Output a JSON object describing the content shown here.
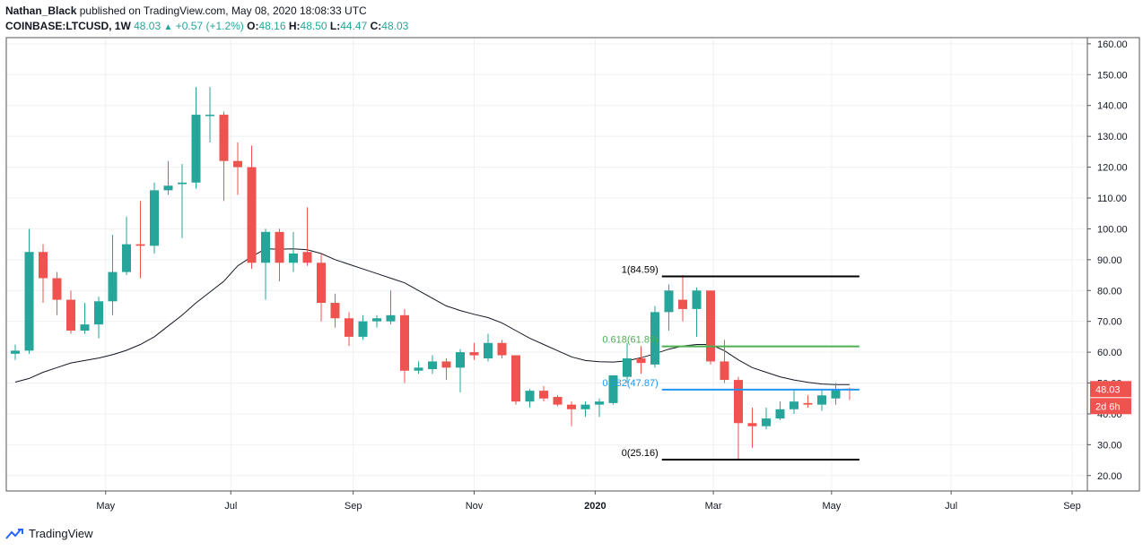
{
  "header": {
    "author": "Nathan_Black",
    "published_text": "published on TradingView.com, May 08, 2020 18:08:33 UTC",
    "symbol": "COINBASE:LTCUSD, 1W",
    "last": "48.03",
    "change": "+0.57 (+1.2%)",
    "o_label": "O:",
    "o_value": "48.16",
    "h_label": "H:",
    "h_value": "48.50",
    "l_label": "L:",
    "l_value": "44.47",
    "c_label": "C:",
    "c_value": "48.03"
  },
  "footer": {
    "brand": "TradingView"
  },
  "colors": {
    "up": "#26a69a",
    "down": "#ef5350",
    "ma": "#131722",
    "fib_1": "#000000",
    "fib_0618": "#4caf50",
    "fib_0382": "#2196f3",
    "fib_0": "#000000",
    "price_badge": "#ef5350",
    "grid": "#eef0f3"
  },
  "chart_data": {
    "type": "candlestick",
    "symbol": "COINBASE:LTCUSD",
    "interval": "1W",
    "ylim": [
      15,
      162
    ],
    "grid": true,
    "y_ticks": [
      "20.00",
      "30.00",
      "40.00",
      "50.00",
      "60.00",
      "70.00",
      "80.00",
      "90.00",
      "100.00",
      "110.00",
      "120.00",
      "130.00",
      "140.00",
      "150.00",
      "160.00"
    ],
    "x_ticks": [
      {
        "label": "May",
        "index": 6.5
      },
      {
        "label": "Jul",
        "index": 15.5
      },
      {
        "label": "Sep",
        "index": 24.3
      },
      {
        "label": "Nov",
        "index": 33.0
      },
      {
        "label": "2020",
        "index": 41.7
      },
      {
        "label": "Mar",
        "index": 50.2
      },
      {
        "label": "May",
        "index": 58.7
      },
      {
        "label": "Jul",
        "index": 67.3
      },
      {
        "label": "Sep",
        "index": 76.0
      }
    ],
    "candles": [
      {
        "o": 59.5,
        "h": 62.5,
        "l": 57.5,
        "c": 60.5
      },
      {
        "o": 60.5,
        "h": 100.0,
        "l": 59.5,
        "c": 92.5
      },
      {
        "o": 92.5,
        "h": 95.0,
        "l": 76.0,
        "c": 84.0
      },
      {
        "o": 84.0,
        "h": 86.0,
        "l": 72.0,
        "c": 77.0
      },
      {
        "o": 77.0,
        "h": 80.0,
        "l": 66.0,
        "c": 67.0
      },
      {
        "o": 67.0,
        "h": 76.0,
        "l": 66.0,
        "c": 69.0
      },
      {
        "o": 69.0,
        "h": 78.0,
        "l": 64.5,
        "c": 76.5
      },
      {
        "o": 76.5,
        "h": 98.0,
        "l": 72.0,
        "c": 86.0
      },
      {
        "o": 86.0,
        "h": 104.0,
        "l": 85.0,
        "c": 95.0
      },
      {
        "o": 95.0,
        "h": 109.0,
        "l": 84.0,
        "c": 94.5
      },
      {
        "o": 94.5,
        "h": 115.0,
        "l": 92.0,
        "c": 112.5
      },
      {
        "o": 112.5,
        "h": 122.0,
        "l": 111.0,
        "c": 114.0
      },
      {
        "o": 114.5,
        "h": 121.0,
        "l": 97.0,
        "c": 115.0
      },
      {
        "o": 115.0,
        "h": 146.0,
        "l": 113.0,
        "c": 137.0
      },
      {
        "o": 137.0,
        "h": 146.0,
        "l": 128.0,
        "c": 137.0
      },
      {
        "o": 137.0,
        "h": 138.0,
        "l": 109.0,
        "c": 122.0
      },
      {
        "o": 122.0,
        "h": 128.0,
        "l": 111.0,
        "c": 120.0
      },
      {
        "o": 120.0,
        "h": 127.0,
        "l": 87.0,
        "c": 89.0
      },
      {
        "o": 89.0,
        "h": 100.0,
        "l": 77.0,
        "c": 99.0
      },
      {
        "o": 99.0,
        "h": 100.0,
        "l": 83.0,
        "c": 89.0
      },
      {
        "o": 89.0,
        "h": 99.0,
        "l": 86.0,
        "c": 92.0
      },
      {
        "o": 92.5,
        "h": 107.0,
        "l": 88.0,
        "c": 89.0
      },
      {
        "o": 89.0,
        "h": 92.0,
        "l": 70.0,
        "c": 76.0
      },
      {
        "o": 76.0,
        "h": 79.0,
        "l": 68.0,
        "c": 71.0
      },
      {
        "o": 71.0,
        "h": 73.0,
        "l": 62.0,
        "c": 65.0
      },
      {
        "o": 65.0,
        "h": 72.0,
        "l": 64.0,
        "c": 70.0
      },
      {
        "o": 70.0,
        "h": 72.0,
        "l": 68.0,
        "c": 71.0
      },
      {
        "o": 70.0,
        "h": 80.0,
        "l": 69.0,
        "c": 72.0
      },
      {
        "o": 72.0,
        "h": 74.0,
        "l": 50.0,
        "c": 54.0
      },
      {
        "o": 54.0,
        "h": 57.0,
        "l": 53.0,
        "c": 55.0
      },
      {
        "o": 54.5,
        "h": 59.0,
        "l": 53.0,
        "c": 57.0
      },
      {
        "o": 57.0,
        "h": 58.0,
        "l": 51.0,
        "c": 55.0
      },
      {
        "o": 55.0,
        "h": 61.0,
        "l": 47.0,
        "c": 60.0
      },
      {
        "o": 60.0,
        "h": 63.0,
        "l": 57.5,
        "c": 59.0
      },
      {
        "o": 58.0,
        "h": 66.0,
        "l": 57.0,
        "c": 63.0
      },
      {
        "o": 63.0,
        "h": 64.0,
        "l": 58.0,
        "c": 59.0
      },
      {
        "o": 59.0,
        "h": 59.0,
        "l": 43.0,
        "c": 44.0
      },
      {
        "o": 44.0,
        "h": 48.0,
        "l": 42.0,
        "c": 47.5
      },
      {
        "o": 47.5,
        "h": 49.0,
        "l": 44.0,
        "c": 45.0
      },
      {
        "o": 45.5,
        "h": 46.0,
        "l": 42.5,
        "c": 43.0
      },
      {
        "o": 43.0,
        "h": 44.0,
        "l": 36.0,
        "c": 41.5
      },
      {
        "o": 41.5,
        "h": 44.0,
        "l": 39.0,
        "c": 43.0
      },
      {
        "o": 43.0,
        "h": 45.0,
        "l": 39.0,
        "c": 44.0
      },
      {
        "o": 43.5,
        "h": 52.0,
        "l": 43.0,
        "c": 52.5
      },
      {
        "o": 52.0,
        "h": 63.0,
        "l": 50.0,
        "c": 58.0
      },
      {
        "o": 58.0,
        "h": 62.0,
        "l": 53.0,
        "c": 56.5
      },
      {
        "o": 56.0,
        "h": 75.0,
        "l": 55.0,
        "c": 73.0
      },
      {
        "o": 73.0,
        "h": 82.0,
        "l": 67.0,
        "c": 80.0
      },
      {
        "o": 77.0,
        "h": 85.0,
        "l": 70.0,
        "c": 74.0
      },
      {
        "o": 74.0,
        "h": 81.0,
        "l": 65.0,
        "c": 80.0
      },
      {
        "o": 80.0,
        "h": 80.0,
        "l": 56.0,
        "c": 57.0
      },
      {
        "o": 57.0,
        "h": 64.0,
        "l": 50.0,
        "c": 51.0
      },
      {
        "o": 51.0,
        "h": 52.0,
        "l": 25.0,
        "c": 37.0
      },
      {
        "o": 37.0,
        "h": 42.0,
        "l": 29.0,
        "c": 36.0
      },
      {
        "o": 36.0,
        "h": 42.0,
        "l": 35.0,
        "c": 38.5
      },
      {
        "o": 38.5,
        "h": 44.0,
        "l": 38.0,
        "c": 41.5
      },
      {
        "o": 41.5,
        "h": 48.0,
        "l": 40.0,
        "c": 44.0
      },
      {
        "o": 43.5,
        "h": 46.0,
        "l": 42.0,
        "c": 43.0
      },
      {
        "o": 43.0,
        "h": 48.0,
        "l": 41.0,
        "c": 46.0
      },
      {
        "o": 45.0,
        "h": 50.0,
        "l": 43.0,
        "c": 48.0
      },
      {
        "o": 48.16,
        "h": 48.5,
        "l": 44.47,
        "c": 48.03
      }
    ],
    "moving_average": [
      50.3,
      51.5,
      53.5,
      55.0,
      56.5,
      57.3,
      58.1,
      59.2,
      60.6,
      62.5,
      65.0,
      68.5,
      72.0,
      76.0,
      79.5,
      83.0,
      88.0,
      91.0,
      93.5,
      93.4,
      93.5,
      93.2,
      92.0,
      90.0,
      88.5,
      87.0,
      85.5,
      84.0,
      82.5,
      80.0,
      77.5,
      75.0,
      73.5,
      72.3,
      71.2,
      69.5,
      67.0,
      64.5,
      62.5,
      60.5,
      58.5,
      57.3,
      56.9,
      56.8,
      57.2,
      58.2,
      59.5,
      61.0,
      62.0,
      62.5,
      62.5,
      60.5,
      57.5,
      55.0,
      53.5,
      52.0,
      51.0,
      50.2,
      49.7,
      49.5,
      49.5
    ],
    "fibonacci": [
      {
        "label": "1(84.59)",
        "value": 84.59
      },
      {
        "label": "0.618(61.89)",
        "value": 61.89
      },
      {
        "label": "0.382(47.87)",
        "value": 47.87
      },
      {
        "label": "0(25.16)",
        "value": 25.16
      }
    ],
    "last_price": "48.03",
    "countdown": "2d 6h"
  }
}
